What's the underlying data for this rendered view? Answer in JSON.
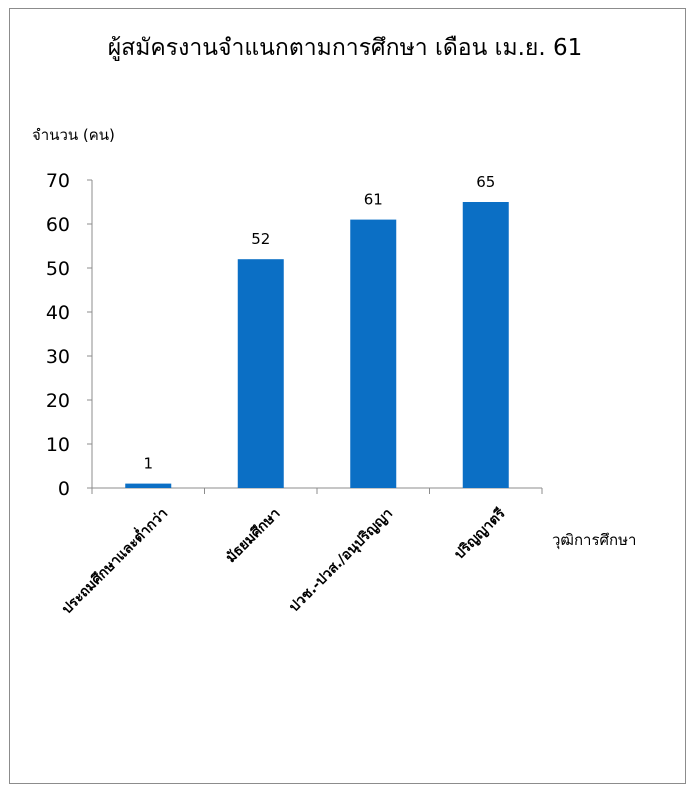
{
  "chart_data": {
    "type": "bar",
    "title": "ผู้สมัครงานจำแนกตามการศึกษา เดือน เม.ย. 61",
    "ylabel": "จำนวน (คน)",
    "xlabel": "วุฒิการศึกษา",
    "categories": [
      "ประถมศึกษาและต่ำกว่า",
      "มัธยมศึกษา",
      "ปวช.-ปวส./อนุปริญญา",
      "ปริญญาตรี"
    ],
    "values": [
      1,
      52,
      61,
      65
    ],
    "ylim": [
      0,
      70
    ],
    "yticks": [
      "0",
      "10",
      "20",
      "30",
      "40",
      "50",
      "60",
      "70"
    ],
    "bar_color": "#0b6fc5",
    "grid": false,
    "legend": "none"
  }
}
